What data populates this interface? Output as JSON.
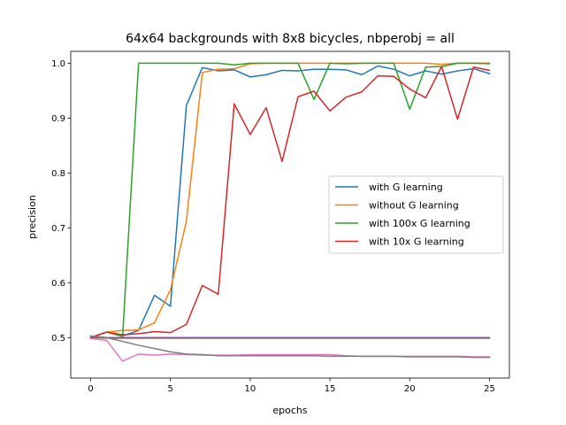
{
  "chart_data": {
    "type": "line",
    "title": "64x64 backgrounds with 8x8 bicycles, nbperobj = all",
    "xlabel": "epochs",
    "ylabel": "precision",
    "xlim": [
      -1.25,
      26.25
    ],
    "ylim": [
      0.4262,
      1.0216
    ],
    "xticks": [
      0,
      5,
      10,
      15,
      20,
      25
    ],
    "yticks": [
      0.5,
      0.6,
      0.7,
      0.8,
      0.9,
      1.0
    ],
    "ytick_labels": [
      "0.5",
      "0.6",
      "0.7",
      "0.8",
      "0.9",
      "1.0"
    ],
    "grid": false,
    "legend_position": "center-right",
    "x": [
      0,
      1,
      2,
      3,
      4,
      5,
      6,
      7,
      8,
      9,
      10,
      11,
      12,
      13,
      14,
      15,
      16,
      17,
      18,
      19,
      20,
      21,
      22,
      23,
      24,
      25
    ],
    "series": [
      {
        "name": "with G learning",
        "color": "#1f77b4",
        "in_legend": true,
        "values": [
          0.5,
          0.51,
          0.503,
          0.513,
          0.577,
          0.557,
          0.923,
          0.992,
          0.986,
          0.988,
          0.975,
          0.979,
          0.987,
          0.986,
          0.989,
          0.989,
          0.988,
          0.979,
          0.995,
          0.989,
          0.977,
          0.986,
          0.98,
          0.986,
          0.99,
          0.981
        ]
      },
      {
        "name": "without G learning",
        "color": "#ff7f0e",
        "in_legend": true,
        "values": [
          0.5,
          0.51,
          0.513,
          0.514,
          0.527,
          0.587,
          0.712,
          0.983,
          0.989,
          0.99,
          0.999,
          1.0,
          1.0,
          1.0,
          1.0,
          1.0,
          1.0,
          1.0,
          1.0,
          1.0,
          1.0,
          1.0,
          0.998,
          1.0,
          1.0,
          1.0
        ]
      },
      {
        "name": "with 100x G learning",
        "color": "#2ca02c",
        "in_legend": true,
        "values": [
          0.5,
          0.51,
          0.502,
          1.0,
          1.0,
          1.0,
          1.0,
          1.0,
          1.0,
          0.997,
          1.0,
          1.0,
          1.0,
          1.0,
          0.934,
          1.0,
          0.999,
          1.0,
          1.0,
          1.0,
          0.916,
          0.993,
          0.994,
          1.0,
          1.0,
          0.999
        ]
      },
      {
        "name": "with 10x G learning",
        "color": "#d62728",
        "in_legend": true,
        "values": [
          0.5,
          0.51,
          0.505,
          0.507,
          0.511,
          0.509,
          0.524,
          0.595,
          0.579,
          0.926,
          0.87,
          0.919,
          0.821,
          0.939,
          0.949,
          0.913,
          0.938,
          0.948,
          0.977,
          0.976,
          0.953,
          0.937,
          0.994,
          0.898,
          0.993,
          0.987
        ]
      },
      {
        "name": "",
        "color": "#9467bd",
        "in_legend": false,
        "values": [
          0.5,
          0.5,
          0.5,
          0.5,
          0.5,
          0.5,
          0.5,
          0.5,
          0.5,
          0.5,
          0.5,
          0.5,
          0.5,
          0.5,
          0.5,
          0.5,
          0.5,
          0.5,
          0.5,
          0.5,
          0.5,
          0.5,
          0.5,
          0.5,
          0.5,
          0.5
        ]
      },
      {
        "name": "",
        "color": "#8c564b",
        "in_legend": false,
        "values": [
          0.5,
          0.499,
          0.499,
          0.499,
          0.499,
          0.499,
          0.499,
          0.499,
          0.499,
          0.499,
          0.499,
          0.499,
          0.499,
          0.499,
          0.499,
          0.499,
          0.499,
          0.499,
          0.499,
          0.499,
          0.499,
          0.499,
          0.499,
          0.499,
          0.499,
          0.499
        ]
      },
      {
        "name": "",
        "color": "#e377c2",
        "in_legend": false,
        "values": [
          0.498,
          0.495,
          0.457,
          0.47,
          0.468,
          0.47,
          0.469,
          0.468,
          0.468,
          0.468,
          0.469,
          0.469,
          0.469,
          0.469,
          0.469,
          0.469,
          0.467,
          0.466,
          0.466,
          0.466,
          0.466,
          0.466,
          0.466,
          0.466,
          0.465,
          0.465
        ]
      },
      {
        "name": "",
        "color": "#7f7f7f",
        "in_legend": false,
        "values": [
          0.503,
          0.5,
          0.493,
          0.486,
          0.48,
          0.474,
          0.47,
          0.469,
          0.467,
          0.467,
          0.467,
          0.467,
          0.467,
          0.467,
          0.467,
          0.466,
          0.466,
          0.466,
          0.466,
          0.466,
          0.465,
          0.465,
          0.465,
          0.465,
          0.464,
          0.464
        ]
      }
    ]
  }
}
